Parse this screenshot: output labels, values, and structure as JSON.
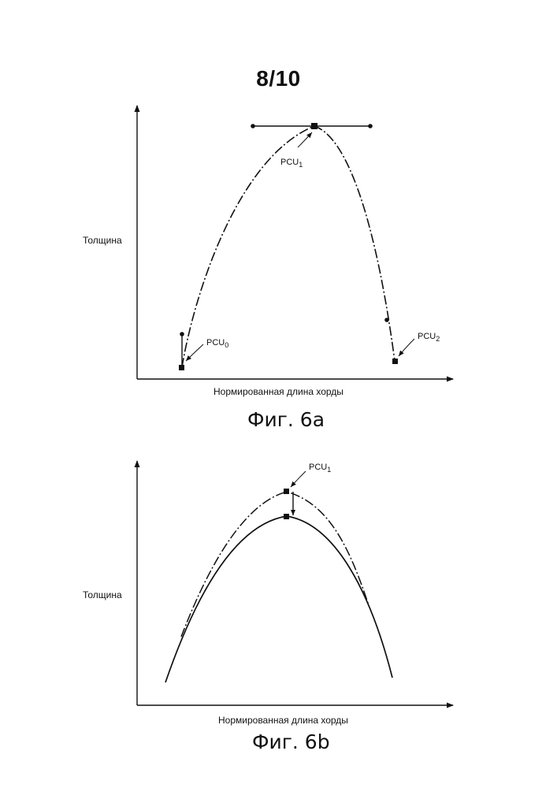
{
  "page": {
    "number": "8/10"
  },
  "figure_a": {
    "caption": "Фиг. 6а",
    "ylabel": "Толщина",
    "xlabel": "Нормированная длина хорды",
    "points": [
      {
        "base": "PCU",
        "sub": "0"
      },
      {
        "base": "PCU",
        "sub": "1"
      },
      {
        "base": "PCU",
        "sub": "2"
      }
    ]
  },
  "figure_b": {
    "caption": "Фиг. 6b",
    "ylabel": "Толщина",
    "xlabel": "Нормированная длина хорды",
    "points": [
      {
        "base": "PCU",
        "sub": "1"
      }
    ]
  }
}
